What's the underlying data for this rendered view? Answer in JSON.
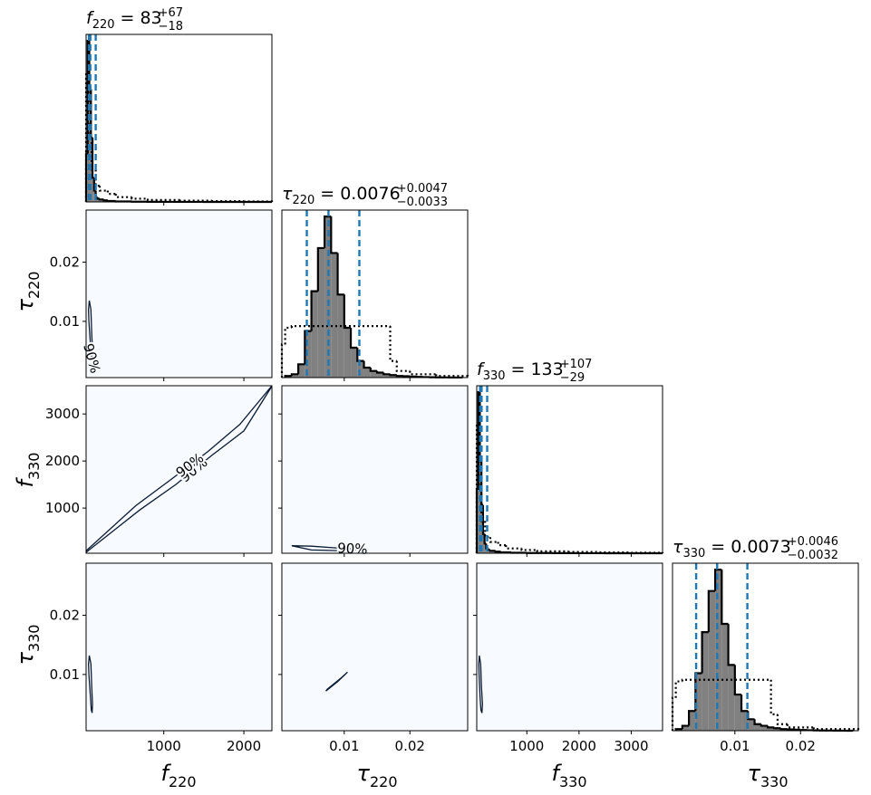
{
  "chart_data": {
    "type": "corner",
    "panel_background": "#f7fbff",
    "hist_color": "#808080",
    "line_color": "#000000",
    "quantile_color": "#1f77b4",
    "contour_color": "#0b1a33",
    "params": [
      {
        "symbol": "f",
        "sub": "220",
        "lim": [
          30,
          2350
        ],
        "ticks": [
          1000,
          2000
        ],
        "title": {
          "symbol": "f",
          "sub": "220",
          "eq": "=",
          "value": "83",
          "upper": "+67",
          "lower": "−18"
        },
        "quantiles": [
          65,
          83,
          150
        ],
        "hist": {
          "bins": [
            30,
            50,
            70,
            90,
            110,
            130,
            150,
            170,
            200,
            250,
            300,
            400,
            600,
            800,
            1000,
            1500,
            2000,
            2350
          ],
          "counts": [
            30,
            100,
            70,
            40,
            15,
            7,
            3,
            2,
            1.5,
            1,
            0.6,
            0.3,
            0.15,
            0.08,
            0.04,
            0.02,
            0.01
          ]
        },
        "prior": {
          "bins": [
            30,
            60,
            100,
            150,
            200,
            300,
            400,
            600,
            800,
            1200,
            1600,
            2000,
            2350
          ],
          "counts": [
            80,
            40,
            20,
            10,
            7,
            5,
            3,
            2,
            1.2,
            0.8,
            0.5,
            0.3
          ]
        }
      },
      {
        "symbol": "τ",
        "sub": "220",
        "lim": [
          0.0005,
          0.0288
        ],
        "ticks": [
          0.01,
          0.02
        ],
        "title": {
          "symbol": "τ",
          "sub": "220",
          "eq": "=",
          "value": "0.0076",
          "upper": "+0.0047",
          "lower": "−0.0033"
        },
        "quantiles": [
          0.0043,
          0.0076,
          0.0123
        ],
        "hist": {
          "bins": [
            0.001,
            0.002,
            0.003,
            0.004,
            0.005,
            0.006,
            0.007,
            0.008,
            0.009,
            0.01,
            0.011,
            0.012,
            0.013,
            0.014,
            0.015,
            0.016,
            0.017,
            0.018,
            0.019,
            0.02,
            0.021,
            0.022,
            0.023,
            0.024,
            0.025,
            0.026,
            0.027,
            0.028
          ],
          "counts": [
            1,
            2,
            8,
            28,
            52,
            78,
            97,
            75,
            50,
            30,
            18,
            10,
            6,
            4,
            3,
            2,
            1.5,
            1,
            0.8,
            0.6,
            0.4,
            0.3,
            0.2,
            0.15,
            0.1,
            0.05,
            0.03
          ]
        },
        "prior": {
          "bins": [
            0.0005,
            0.001,
            0.002,
            0.017,
            0.018,
            0.02,
            0.024,
            0.0288
          ],
          "counts": [
            20,
            30,
            31,
            10,
            4,
            2,
            1
          ]
        }
      },
      {
        "symbol": "f",
        "sub": "330",
        "lim": [
          40,
          3600
        ],
        "ticks": [
          1000,
          2000,
          3000
        ],
        "title": {
          "symbol": "f",
          "sub": "330",
          "eq": "=",
          "value": "133",
          "upper": "+107",
          "lower": "−29"
        },
        "quantiles": [
          104,
          133,
          240
        ],
        "hist": {
          "bins": [
            40,
            70,
            100,
            130,
            160,
            190,
            220,
            260,
            300,
            400,
            500,
            700,
            1000,
            1500,
            2000,
            2500,
            3600
          ],
          "counts": [
            40,
            100,
            60,
            30,
            12,
            6,
            3,
            2,
            1.5,
            1,
            0.6,
            0.3,
            0.15,
            0.08,
            0.04,
            0.02
          ]
        },
        "prior": {
          "bins": [
            40,
            80,
            130,
            200,
            300,
            450,
            600,
            900,
            1200,
            1800,
            2400,
            3000,
            3600
          ],
          "counts": [
            80,
            40,
            20,
            10,
            7,
            5,
            3,
            2,
            1.2,
            0.8,
            0.5,
            0.3
          ]
        }
      },
      {
        "symbol": "τ",
        "sub": "330",
        "lim": [
          0.0005,
          0.0288
        ],
        "ticks": [
          0.01,
          0.02
        ],
        "title": {
          "symbol": "τ",
          "sub": "330",
          "eq": "=",
          "value": "0.0073",
          "upper": "+0.0046",
          "lower": "−0.0032"
        },
        "quantiles": [
          0.0041,
          0.0073,
          0.0119
        ],
        "hist": {
          "bins": [
            0.001,
            0.002,
            0.003,
            0.004,
            0.005,
            0.006,
            0.007,
            0.008,
            0.009,
            0.01,
            0.011,
            0.012,
            0.013,
            0.014,
            0.015,
            0.016,
            0.017,
            0.018,
            0.019,
            0.02,
            0.021,
            0.022,
            0.023,
            0.024,
            0.025,
            0.026,
            0.027,
            0.028
          ],
          "counts": [
            1,
            3,
            12,
            35,
            60,
            85,
            98,
            65,
            40,
            22,
            12,
            7,
            4,
            3,
            2,
            1.5,
            1,
            0.8,
            0.6,
            0.4,
            0.3,
            0.2,
            0.15,
            0.1,
            0.05,
            0.03,
            0.02
          ]
        },
        "prior": {
          "bins": [
            0.0005,
            0.001,
            0.002,
            0.0155,
            0.0165,
            0.018,
            0.022,
            0.0288
          ],
          "counts": [
            20,
            30,
            31,
            10,
            4,
            2,
            1
          ]
        }
      }
    ],
    "pairs": [
      {
        "x": 0,
        "y": 1,
        "contours": [
          {
            "label": "90%",
            "x": [
              70,
              90,
              100,
              110,
              105,
              95,
              85,
              75,
              65,
              60,
              70
            ],
            "y": [
              0.0135,
              0.012,
              0.008,
              0.005,
              0.0035,
              0.004,
              0.006,
              0.008,
              0.01,
              0.012,
              0.0135
            ]
          }
        ]
      },
      {
        "x": 0,
        "y": 2,
        "contours": [
          {
            "label": "90%",
            "x": [
              30,
              700,
              1150,
              1600,
              2000,
              2350
            ],
            "y": [
              60,
              960,
              1500,
              2120,
              2640,
              3590
            ]
          },
          {
            "label": "90%",
            "x": [
              30,
              650,
              1100,
              1550,
              1950,
              2350
            ],
            "y": [
              90,
              1050,
              1620,
              2200,
              2780,
              3600
            ]
          }
        ]
      },
      {
        "x": 1,
        "y": 2,
        "contours": [
          {
            "label": "90%",
            "x": [
              0.002,
              0.005,
              0.009,
              0.0135,
              0.009,
              0.005,
              0.002
            ],
            "y": [
              200,
              190,
              150,
              120,
              95,
              110,
              200
            ]
          }
        ]
      },
      {
        "x": 0,
        "y": 3,
        "contours": [
          {
            "x": [
              70,
              90,
              100,
              110,
              105,
              95,
              85,
              75,
              65,
              60,
              70
            ],
            "y": [
              0.0132,
              0.0118,
              0.008,
              0.005,
              0.0035,
              0.004,
              0.006,
              0.008,
              0.01,
              0.0118,
              0.0132
            ]
          }
        ]
      },
      {
        "x": 1,
        "y": 3,
        "contours": [
          {
            "x": [
              0.0072,
              0.009,
              0.0105,
              0.0095,
              0.0074,
              0.0072
            ],
            "y": [
              0.0072,
              0.0088,
              0.0104,
              0.0094,
              0.0075,
              0.0072
            ]
          }
        ]
      },
      {
        "x": 2,
        "y": 3,
        "contours": [
          {
            "x": [
              90,
              115,
              130,
              150,
              140,
              120,
              105,
              95,
              85,
              80,
              90
            ],
            "y": [
              0.0132,
              0.0118,
              0.008,
              0.005,
              0.0035,
              0.004,
              0.006,
              0.008,
              0.01,
              0.0118,
              0.0132
            ]
          }
        ]
      }
    ]
  }
}
